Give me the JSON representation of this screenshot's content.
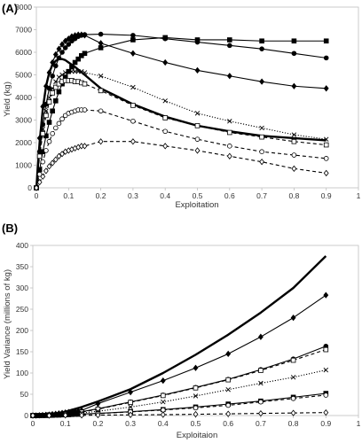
{
  "chart_data": [
    {
      "panel": "(A)",
      "type": "line",
      "xlabel": "Exploitation",
      "ylabel": "Yield (kg)",
      "xlim": [
        0,
        1
      ],
      "ylim": [
        0,
        8000
      ],
      "xticks": [
        0,
        0.1,
        0.2,
        0.3,
        0.4,
        0.5,
        0.6,
        0.7,
        0.8,
        0.9,
        1
      ],
      "yticks": [
        0,
        1000,
        2000,
        3000,
        4000,
        5000,
        6000,
        7000,
        8000
      ],
      "grid": false,
      "legend": "none",
      "series": [
        {
          "marker": "none",
          "line": "solid-thick",
          "x": [
            0,
            0.01,
            0.02,
            0.03,
            0.04,
            0.05,
            0.06,
            0.07,
            0.08,
            0.09,
            0.1,
            0.12,
            0.15,
            0.2,
            0.3,
            0.4,
            0.5,
            0.6,
            0.7,
            0.8,
            0.9
          ],
          "y": [
            0,
            2000,
            3500,
            4500,
            5100,
            5450,
            5620,
            5700,
            5700,
            5650,
            5550,
            5350,
            5000,
            4400,
            3700,
            3150,
            2750,
            2500,
            2300,
            2200,
            2100
          ]
        },
        {
          "marker": "filled-diamond",
          "line": "solid",
          "x": [
            0,
            0.01,
            0.02,
            0.03,
            0.04,
            0.05,
            0.06,
            0.07,
            0.08,
            0.09,
            0.1,
            0.11,
            0.12,
            0.13,
            0.14,
            0.15,
            0.2,
            0.3,
            0.4,
            0.5,
            0.6,
            0.7,
            0.8,
            0.9
          ],
          "y": [
            0,
            2200,
            3600,
            4500,
            5100,
            5550,
            5900,
            6150,
            6350,
            6500,
            6600,
            6700,
            6750,
            6780,
            6780,
            6750,
            6400,
            5950,
            5550,
            5200,
            4950,
            4700,
            4500,
            4400
          ]
        },
        {
          "marker": "filled-circle",
          "line": "solid",
          "x": [
            0,
            0.01,
            0.02,
            0.03,
            0.04,
            0.05,
            0.06,
            0.07,
            0.08,
            0.09,
            0.1,
            0.11,
            0.12,
            0.13,
            0.14,
            0.15,
            0.2,
            0.3,
            0.4,
            0.5,
            0.6,
            0.7,
            0.8,
            0.9
          ],
          "y": [
            0,
            1600,
            2800,
            3700,
            4400,
            4950,
            5400,
            5750,
            6000,
            6200,
            6350,
            6500,
            6600,
            6700,
            6750,
            6780,
            6800,
            6750,
            6600,
            6450,
            6300,
            6150,
            5950,
            5750
          ]
        },
        {
          "marker": "filled-square",
          "line": "solid",
          "x": [
            0,
            0.01,
            0.02,
            0.03,
            0.04,
            0.05,
            0.06,
            0.07,
            0.08,
            0.09,
            0.1,
            0.11,
            0.12,
            0.13,
            0.14,
            0.15,
            0.2,
            0.3,
            0.4,
            0.5,
            0.6,
            0.7,
            0.8,
            0.9
          ],
          "y": [
            0,
            800,
            1600,
            2300,
            2900,
            3400,
            3850,
            4250,
            4600,
            4900,
            5150,
            5350,
            5550,
            5700,
            5850,
            5950,
            6200,
            6550,
            6650,
            6550,
            6550,
            6500,
            6500,
            6500
          ]
        },
        {
          "marker": "x",
          "line": "dotted",
          "x": [
            0,
            0.01,
            0.02,
            0.03,
            0.04,
            0.05,
            0.06,
            0.07,
            0.08,
            0.09,
            0.1,
            0.11,
            0.12,
            0.13,
            0.14,
            0.15,
            0.2,
            0.3,
            0.4,
            0.5,
            0.6,
            0.7,
            0.8,
            0.9
          ],
          "y": [
            0,
            1500,
            2600,
            3400,
            4000,
            4400,
            4700,
            4900,
            5000,
            5100,
            5150,
            5150,
            5150,
            5150,
            5150,
            5100,
            4950,
            4450,
            3850,
            3300,
            2950,
            2650,
            2350,
            2150
          ]
        },
        {
          "marker": "open-square",
          "line": "dashed",
          "x": [
            0,
            0.01,
            0.02,
            0.03,
            0.04,
            0.05,
            0.06,
            0.07,
            0.08,
            0.09,
            0.1,
            0.11,
            0.12,
            0.13,
            0.14,
            0.15,
            0.2,
            0.3,
            0.4,
            0.5,
            0.6,
            0.7,
            0.8,
            0.9
          ],
          "y": [
            0,
            1400,
            2400,
            3200,
            3800,
            4200,
            4450,
            4600,
            4700,
            4750,
            4750,
            4750,
            4700,
            4700,
            4650,
            4600,
            4300,
            3650,
            3100,
            2750,
            2450,
            2250,
            2050,
            1900
          ]
        },
        {
          "marker": "open-circle",
          "line": "dashed",
          "x": [
            0,
            0.01,
            0.02,
            0.03,
            0.04,
            0.05,
            0.06,
            0.07,
            0.08,
            0.09,
            0.1,
            0.11,
            0.12,
            0.13,
            0.14,
            0.15,
            0.2,
            0.3,
            0.4,
            0.5,
            0.6,
            0.7,
            0.8,
            0.9
          ],
          "y": [
            0,
            600,
            1150,
            1650,
            2050,
            2400,
            2650,
            2850,
            3050,
            3200,
            3300,
            3350,
            3400,
            3450,
            3450,
            3450,
            3400,
            2950,
            2500,
            2150,
            1850,
            1600,
            1450,
            1300
          ]
        },
        {
          "marker": "open-diamond",
          "line": "dashed",
          "x": [
            0,
            0.01,
            0.02,
            0.03,
            0.04,
            0.05,
            0.06,
            0.07,
            0.08,
            0.09,
            0.1,
            0.11,
            0.12,
            0.13,
            0.14,
            0.15,
            0.2,
            0.3,
            0.4,
            0.5,
            0.6,
            0.7,
            0.8,
            0.9
          ],
          "y": [
            0,
            250,
            500,
            750,
            950,
            1100,
            1250,
            1400,
            1500,
            1600,
            1650,
            1700,
            1750,
            1800,
            1850,
            1850,
            2050,
            2050,
            1850,
            1650,
            1400,
            1150,
            850,
            650
          ]
        }
      ]
    },
    {
      "panel": "(B)",
      "type": "line",
      "xlabel": "Exploitaion",
      "ylabel": "Yield Variance (millions of kg)",
      "xlim": [
        0,
        1
      ],
      "ylim": [
        0,
        400
      ],
      "xticks": [
        0,
        0.1,
        0.2,
        0.3,
        0.4,
        0.5,
        0.6,
        0.7,
        0.8,
        0.9,
        1
      ],
      "yticks": [
        0,
        50,
        100,
        150,
        200,
        250,
        300,
        350,
        400
      ],
      "grid": false,
      "legend": "none",
      "series": [
        {
          "marker": "none",
          "line": "solid-thick",
          "x": [
            0,
            0.05,
            0.1,
            0.15,
            0.2,
            0.3,
            0.4,
            0.5,
            0.6,
            0.7,
            0.8,
            0.9
          ],
          "y": [
            0,
            2,
            9,
            20,
            33,
            62,
            100,
            143,
            190,
            242,
            300,
            375
          ]
        },
        {
          "marker": "filled-diamond",
          "line": "solid",
          "x": [
            0,
            0.01,
            0.02,
            0.03,
            0.04,
            0.05,
            0.06,
            0.07,
            0.08,
            0.09,
            0.1,
            0.11,
            0.12,
            0.13,
            0.14,
            0.15,
            0.2,
            0.3,
            0.4,
            0.5,
            0.6,
            0.7,
            0.8,
            0.9
          ],
          "y": [
            0,
            0,
            0.5,
            1,
            1.5,
            2,
            3,
            4,
            5,
            6,
            7,
            8,
            9,
            10,
            11,
            12,
            28,
            55,
            82,
            112,
            145,
            185,
            230,
            283
          ]
        },
        {
          "marker": "filled-circle",
          "line": "solid",
          "x": [
            0,
            0.01,
            0.02,
            0.03,
            0.04,
            0.05,
            0.06,
            0.07,
            0.08,
            0.09,
            0.1,
            0.11,
            0.12,
            0.13,
            0.14,
            0.15,
            0.2,
            0.3,
            0.4,
            0.5,
            0.6,
            0.7,
            0.8,
            0.9
          ],
          "y": [
            0,
            0,
            0,
            0.5,
            1,
            1.5,
            2,
            2.5,
            3,
            3.5,
            4,
            5,
            6,
            7,
            8,
            9,
            16,
            32,
            48,
            66,
            85,
            108,
            133,
            163
          ]
        },
        {
          "marker": "open-square",
          "line": "dashed",
          "x": [
            0,
            0.05,
            0.1,
            0.15,
            0.2,
            0.3,
            0.4,
            0.5,
            0.6,
            0.7,
            0.8,
            0.9
          ],
          "y": [
            0,
            1.5,
            4,
            8,
            15,
            31,
            47,
            65,
            84,
            106,
            130,
            155
          ]
        },
        {
          "marker": "x",
          "line": "dotted",
          "x": [
            0,
            0.01,
            0.02,
            0.03,
            0.04,
            0.05,
            0.06,
            0.07,
            0.08,
            0.09,
            0.1,
            0.11,
            0.12,
            0.13,
            0.14,
            0.15,
            0.2,
            0.3,
            0.4,
            0.5,
            0.6,
            0.7,
            0.8,
            0.9
          ],
          "y": [
            0,
            0,
            0,
            0.5,
            0.5,
            1,
            1.5,
            2,
            2.5,
            3,
            3.5,
            4,
            4.5,
            5,
            5.5,
            6,
            10,
            20,
            32,
            46,
            61,
            76,
            90,
            107
          ]
        },
        {
          "marker": "filled-square",
          "line": "solid",
          "x": [
            0,
            0.01,
            0.02,
            0.03,
            0.04,
            0.05,
            0.06,
            0.07,
            0.08,
            0.09,
            0.1,
            0.11,
            0.12,
            0.13,
            0.14,
            0.15,
            0.2,
            0.3,
            0.4,
            0.5,
            0.6,
            0.7,
            0.8,
            0.9
          ],
          "y": [
            0,
            0,
            0,
            0,
            0,
            0.5,
            0.5,
            1,
            1,
            1.5,
            2,
            2,
            2.5,
            3,
            3,
            3.5,
            5,
            9,
            14,
            20,
            27,
            34,
            43,
            52
          ]
        },
        {
          "marker": "open-circle",
          "line": "dashed",
          "x": [
            0,
            0.05,
            0.1,
            0.15,
            0.2,
            0.3,
            0.4,
            0.5,
            0.6,
            0.7,
            0.8,
            0.9
          ],
          "y": [
            0,
            0.5,
            1.5,
            3,
            4.5,
            8.5,
            13,
            18,
            24,
            32,
            40,
            48
          ]
        },
        {
          "marker": "open-diamond",
          "line": "dashed",
          "x": [
            0,
            0.05,
            0.1,
            0.15,
            0.2,
            0.3,
            0.4,
            0.5,
            0.6,
            0.7,
            0.8,
            0.9
          ],
          "y": [
            0,
            0,
            0.5,
            0.5,
            1,
            1.5,
            2,
            3,
            4,
            5,
            6,
            7
          ]
        }
      ]
    }
  ]
}
